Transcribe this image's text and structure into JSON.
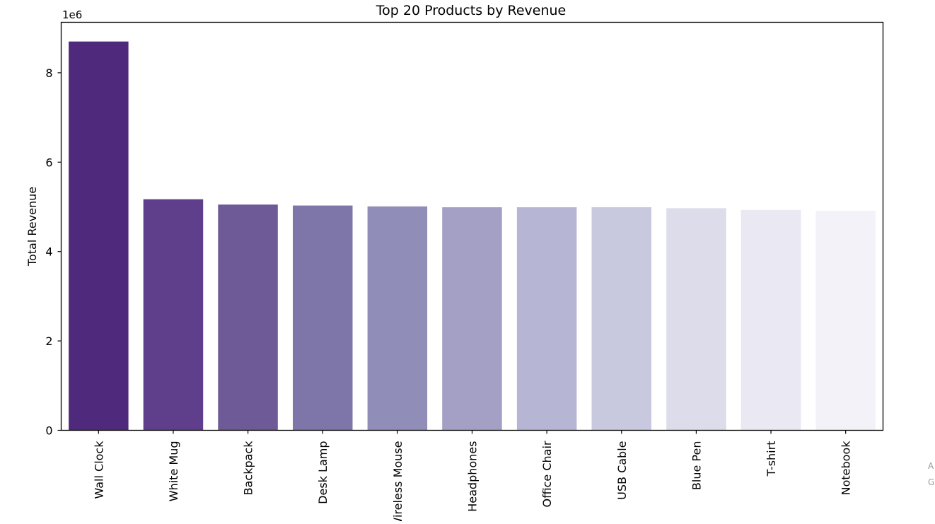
{
  "chart_data": {
    "type": "bar",
    "title": "Top 20 Products by Revenue",
    "xlabel": "",
    "ylabel": "Total Revenue",
    "offset_label": "1e6",
    "categories": [
      "Wall Clock",
      "White Mug",
      "Backpack",
      "Desk Lamp",
      "Wireless Mouse",
      "Headphones",
      "Office Chair",
      "USB Cable",
      "Blue Pen",
      "T-shirt",
      "Notebook"
    ],
    "values": [
      8700000,
      5170000,
      5050000,
      5030000,
      5010000,
      4990000,
      4990000,
      4990000,
      4970000,
      4930000,
      4910000
    ],
    "colors": [
      "#4f2a7c",
      "#5f3f8b",
      "#6e5a97",
      "#7e75a8",
      "#918db9",
      "#a4a0c5",
      "#b6b5d4",
      "#c8c8de",
      "#dcdcea",
      "#e9e8f3",
      "#f3f2f8"
    ],
    "yticks": [
      0,
      2,
      4,
      6,
      8
    ],
    "ylim": [
      0,
      9130000
    ],
    "grid": false,
    "legend": "none"
  },
  "side_text": [
    "A",
    "G"
  ]
}
